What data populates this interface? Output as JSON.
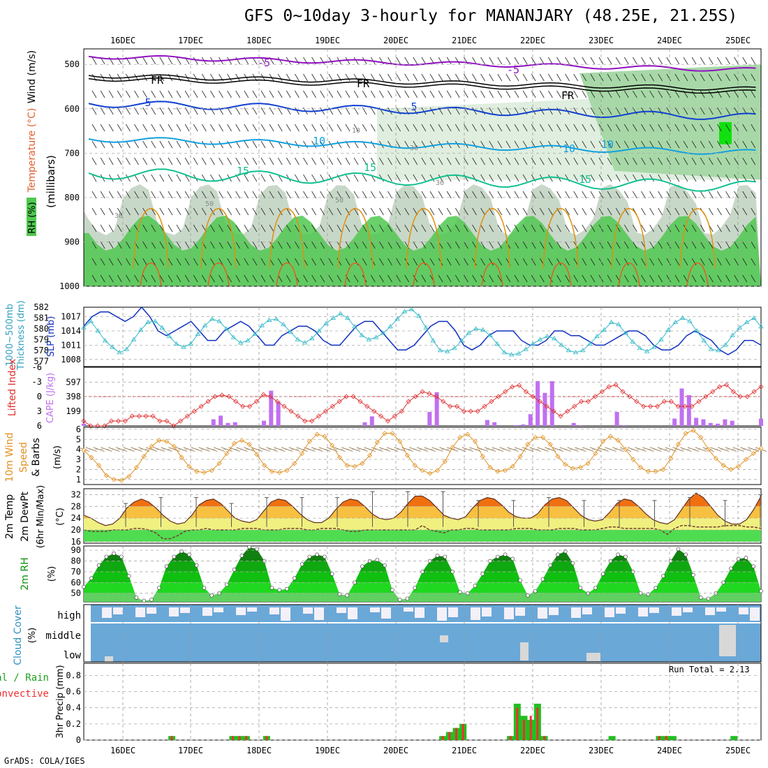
{
  "title": "GFS 0~10day 3-hourly for MANANJARY (48.25E, 21.25S)",
  "credit": "GrADS: COLA/IGES",
  "run_total": "Run Total = 2.13",
  "colors": {
    "rh_green": "#50c850",
    "temp_purple": "#9010c0",
    "temp_blue": "#1040d0",
    "temp_cyan": "#10a0e0",
    "temp_teal": "#10c090",
    "temp_orange": "#e09010",
    "slp_blue": "#1030c0",
    "thick_cyan": "#30b8c8",
    "lifted_red": "#e03030",
    "cape_purple": "#c070f0",
    "wind_orange": "#e09020",
    "cloud_blue": "#6aa8d8",
    "precip_green": "#20c020",
    "precip_red": "#f03030"
  },
  "panel_labels": {
    "upper": [
      "RH (%)",
      "Temperature (°C)",
      "Wind (m/s)",
      "(millibars)"
    ],
    "slp": [
      "1000~500mb",
      "Thickness (dm)",
      "SLP (mb)"
    ],
    "cape": [
      "Lifted Index",
      "CAPE (J/kg)"
    ],
    "wind": [
      "10m Wind",
      "Speed",
      "& Barbs",
      "(m/s)"
    ],
    "temp": [
      "2m Temp",
      "2m DewPt",
      "(6hr Min/Max)",
      "(°C)"
    ],
    "rh": [
      "2m RH",
      "(%)"
    ],
    "cloud": [
      "Cloud Cover",
      "(%)"
    ],
    "precip": [
      "Total / Rain",
      "Convective",
      "3hr Precip (mm)"
    ]
  },
  "chart_data": [
    {
      "id": "upper_air",
      "type": "heatmap",
      "x_ticks": [
        "16DEC",
        "17DEC",
        "18DEC",
        "19DEC",
        "20DEC",
        "21DEC",
        "22DEC",
        "23DEC",
        "24DEC",
        "25DEC"
      ],
      "y_ticks": [
        500,
        600,
        700,
        800,
        900,
        1000
      ],
      "contour_labels": [
        "-5",
        "-5",
        "FR",
        "FR",
        "FR",
        "5",
        "5",
        "10",
        "10",
        "10",
        "15",
        "15",
        "15",
        "30",
        "30",
        "30",
        "50",
        "50",
        "10"
      ]
    },
    {
      "id": "slp_thickness",
      "type": "line",
      "slp_ticks": [
        1008,
        1011,
        1014,
        1017
      ],
      "thickness_ticks": [
        577,
        578,
        579,
        580,
        581,
        582
      ],
      "slp": [
        1015,
        1017,
        1018,
        1018,
        1017,
        1016,
        1017,
        1019,
        1017,
        1014,
        1013,
        1014,
        1015,
        1016,
        1014,
        1012,
        1012,
        1014,
        1015,
        1016,
        1015,
        1013,
        1011,
        1011,
        1013,
        1014,
        1015,
        1015,
        1014,
        1012,
        1011,
        1011,
        1013,
        1015,
        1016,
        1016,
        1014,
        1012,
        1010,
        1010,
        1011,
        1013,
        1015,
        1016,
        1016,
        1014,
        1011,
        1010,
        1011,
        1013,
        1014,
        1014,
        1014,
        1012,
        1011,
        1011,
        1012,
        1014,
        1014,
        1013,
        1013,
        1012,
        1011,
        1011,
        1012,
        1013,
        1014,
        1014,
        1013,
        1011,
        1010,
        1010,
        1011,
        1013,
        1014,
        1013,
        1012,
        1010,
        1009,
        1010,
        1012,
        1012,
        1011
      ],
      "thickness": [
        580.1,
        580.7,
        579.8,
        578.9,
        578.3,
        577.8,
        578.1,
        579.0,
        579.9,
        580.6,
        580.7,
        580.1,
        579.3,
        578.6,
        578.3,
        578.6,
        579.5,
        580.3,
        580.9,
        580.7,
        580.0,
        579.2,
        578.7,
        578.9,
        579.5,
        580.3,
        580.8,
        580.9,
        580.4,
        579.7,
        579.0,
        578.7,
        579.1,
        579.8,
        580.5,
        581.0,
        581.4,
        581.0,
        580.2,
        579.4,
        579.0,
        579.2,
        579.6,
        580.2,
        580.9,
        581.6,
        581.8,
        581.2,
        580.1,
        578.9,
        578.0,
        577.9,
        578.2,
        578.9,
        579.6,
        580.0,
        579.9,
        579.4,
        578.6,
        577.8,
        577.6,
        577.7,
        578.1,
        578.6,
        579.0,
        579.3,
        579.1,
        578.5,
        578.0,
        577.8,
        578.0,
        578.6,
        579.3,
        579.9,
        580.6,
        580.4,
        579.6,
        578.8,
        578.2,
        577.9,
        578.3,
        579.0,
        579.9,
        580.6,
        581.0,
        580.7,
        579.8,
        578.9,
        578.1,
        578.0,
        578.5,
        579.4,
        580.1,
        580.6,
        581.0,
        580.2
      ]
    },
    {
      "id": "cape_lifted",
      "type": "bar",
      "li_ticks": [
        "-6",
        "-3",
        "0",
        "3",
        "6"
      ],
      "cape_ticks": [
        199,
        398,
        597
      ],
      "lifted_index": [
        5,
        6,
        6,
        6,
        5,
        5,
        5,
        4,
        4,
        4,
        4,
        5,
        5,
        6,
        5,
        4,
        3,
        2,
        1,
        0,
        -0.3,
        0,
        1,
        2,
        2,
        1,
        -0.4,
        0,
        1,
        2,
        3,
        4,
        5,
        5,
        4,
        3,
        2,
        1,
        0,
        0,
        1,
        2,
        3,
        4,
        5,
        4,
        3,
        1,
        0,
        -1,
        -0.6,
        0,
        1,
        2,
        2,
        3,
        3,
        3,
        2,
        1,
        0,
        -1,
        -2,
        -2.3,
        -1,
        0,
        1,
        2,
        3,
        4,
        3,
        2,
        1,
        1,
        0,
        -1,
        -2,
        -2.4,
        -1,
        0,
        1,
        2,
        2,
        2,
        1,
        1,
        2,
        2,
        2,
        1,
        0,
        -1,
        -2,
        -2.4,
        -1,
        0,
        0,
        -1,
        -2
      ],
      "cape": [
        30,
        0,
        0,
        0,
        0,
        0,
        0,
        0,
        0,
        0,
        0,
        0,
        0,
        0,
        0,
        0,
        0,
        0,
        90,
        140,
        40,
        50,
        0,
        0,
        0,
        70,
        480,
        330,
        0,
        0,
        0,
        0,
        0,
        0,
        0,
        0,
        0,
        0,
        0,
        50,
        130,
        0,
        0,
        0,
        0,
        0,
        0,
        0,
        190,
        460,
        0,
        0,
        0,
        0,
        0,
        0,
        80,
        50,
        0,
        0,
        10,
        20,
        160,
        610,
        450,
        610,
        0,
        0,
        40,
        10,
        0,
        0,
        0,
        0,
        190,
        10,
        0,
        0,
        0,
        0,
        0,
        0,
        100,
        510,
        420,
        110,
        90,
        40,
        30,
        90,
        70,
        0,
        0,
        0,
        100
      ]
    },
    {
      "id": "wind10m",
      "type": "line",
      "y_ticks": [
        1,
        2,
        3,
        4,
        5,
        6
      ],
      "speed": [
        3.9,
        3.2,
        2.4,
        1.4,
        1.0,
        0.9,
        1.3,
        2.2,
        3.3,
        4.3,
        4.9,
        4.8,
        4.3,
        3.2,
        2.3,
        1.8,
        1.7,
        1.9,
        2.6,
        3.6,
        4.6,
        4.9,
        4.5,
        3.5,
        2.4,
        1.8,
        1.7,
        1.9,
        2.6,
        3.6,
        4.8,
        5.5,
        5.3,
        4.4,
        3.2,
        2.4,
        2.3,
        2.6,
        3.4,
        4.7,
        5.6,
        5.6,
        4.8,
        3.4,
        2.4,
        1.9,
        1.6,
        1.9,
        2.8,
        4.2,
        5.2,
        5.5,
        4.8,
        3.3,
        2.2,
        1.8,
        1.9,
        2.3,
        3.3,
        4.5,
        5.2,
        5.2,
        4.5,
        3.3,
        2.5,
        2.1,
        2.2,
        2.6,
        3.6,
        4.8,
        5.3,
        4.9,
        4.0,
        3.0,
        2.2,
        1.8,
        1.8,
        2.0,
        3.1,
        4.5,
        5.6,
        5.9,
        5.2,
        4.0,
        3.1,
        2.4,
        2.0,
        2.3,
        3.0,
        3.6,
        4.1
      ]
    },
    {
      "id": "temp2m",
      "type": "area",
      "y_ticks": [
        16,
        20,
        24,
        28,
        32
      ],
      "temp": [
        25.0,
        24.0,
        22.5,
        21.5,
        22.0,
        24.0,
        27.5,
        29.5,
        30.5,
        29.5,
        27.5,
        25.0,
        23.0,
        22.0,
        22.5,
        25.0,
        28.5,
        30.0,
        30.5,
        29.0,
        26.5,
        24.0,
        23.0,
        22.5,
        23.5,
        26.5,
        29.5,
        30.5,
        30.0,
        28.0,
        25.5,
        23.5,
        22.5,
        22.5,
        24.0,
        27.0,
        29.5,
        30.5,
        30.0,
        28.0,
        25.5,
        24.0,
        23.5,
        24.0,
        26.0,
        29.0,
        31.5,
        31.5,
        30.0,
        27.5,
        25.0,
        24.0,
        23.5,
        24.5,
        27.5,
        30.0,
        31.0,
        30.5,
        28.5,
        26.0,
        24.5,
        24.0,
        24.0,
        25.5,
        28.5,
        30.5,
        31.0,
        30.0,
        27.5,
        25.0,
        23.5,
        23.0,
        23.5,
        26.0,
        29.0,
        30.5,
        30.0,
        28.0,
        25.5,
        23.5,
        22.5,
        22.0,
        23.5,
        27.0,
        30.5,
        32.5,
        31.0,
        28.0,
        25.0,
        23.0,
        22.0,
        22.0,
        23.5,
        27.0,
        31.5
      ],
      "dewpoint": [
        20.0,
        19.5,
        19.5,
        19.5,
        20.0,
        20.0,
        20.0,
        20.5,
        20.5,
        20.0,
        19.0,
        17.0,
        17.0,
        18.0,
        19.5,
        20.0,
        20.0,
        20.5,
        20.0,
        20.0,
        20.0,
        20.0,
        20.5,
        20.5,
        20.5,
        20.0,
        20.0,
        20.0,
        20.5,
        20.5,
        20.5,
        20.0,
        20.0,
        20.5,
        20.5,
        20.5,
        20.0,
        19.5,
        19.5,
        20.0,
        20.0,
        20.0,
        20.0,
        20.0,
        20.0,
        20.0,
        20.0,
        21.5,
        20.0,
        19.5,
        19.0,
        20.0,
        20.0,
        20.5,
        20.5,
        20.0,
        20.0,
        20.0,
        20.0,
        20.0,
        20.5,
        20.5,
        20.5,
        20.0,
        20.0,
        20.0,
        20.5,
        20.5,
        20.5,
        20.0,
        20.0,
        20.0,
        20.5,
        21.0,
        21.0,
        20.5,
        20.5,
        20.5,
        20.5,
        20.5,
        20.0,
        18.5,
        20.5,
        21.5,
        21.5,
        21.0,
        21.0,
        21.0,
        21.0,
        21.5,
        21.5,
        21.5,
        21.0,
        21.0,
        20.5
      ],
      "max_whisker": [
        29,
        31,
        31,
        29,
        31,
        31,
        31,
        33,
        33,
        33,
        30,
        30,
        31,
        30,
        30,
        30,
        31,
        30,
        32
      ]
    },
    {
      "id": "rh2m",
      "type": "area",
      "y_ticks": [
        50,
        60,
        70,
        80,
        90
      ],
      "rh": [
        56,
        64,
        76,
        84,
        87,
        84,
        66,
        46,
        43,
        44,
        55,
        75,
        84,
        89,
        86,
        76,
        55,
        48,
        50,
        58,
        72,
        85,
        93,
        91,
        80,
        55,
        53,
        54,
        64,
        77,
        84,
        86,
        84,
        68,
        49,
        48,
        60,
        75,
        80,
        81,
        76,
        53,
        44,
        45,
        55,
        70,
        80,
        85,
        84,
        70,
        51,
        50,
        57,
        68,
        80,
        84,
        86,
        82,
        62,
        48,
        52,
        63,
        76,
        86,
        89,
        78,
        55,
        50,
        55,
        68,
        80,
        86,
        84,
        70,
        50,
        49,
        55,
        66,
        80,
        91,
        86,
        67,
        46,
        45,
        50,
        60,
        73,
        82,
        83,
        75,
        52
      ]
    },
    {
      "id": "cloud",
      "type": "table",
      "levels": [
        "high",
        "middle",
        "low"
      ]
    },
    {
      "id": "precip3h",
      "type": "bar",
      "y_ticks": [
        0,
        0.2,
        0.4,
        0.6,
        0.8
      ],
      "total": [
        0,
        0,
        0,
        0,
        0,
        0,
        0,
        0,
        0,
        0,
        0,
        0,
        0,
        0.05,
        0,
        0,
        0,
        0,
        0,
        0,
        0,
        0,
        0.05,
        0.05,
        0.05,
        0,
        0,
        0.05,
        0,
        0,
        0,
        0,
        0,
        0,
        0,
        0,
        0,
        0,
        0,
        0,
        0,
        0,
        0,
        0,
        0,
        0,
        0,
        0,
        0,
        0,
        0,
        0,
        0,
        0.05,
        0.1,
        0.15,
        0.2,
        0,
        0,
        0,
        0,
        0,
        0,
        0.05,
        0.45,
        0.3,
        0.25,
        0.45,
        0.05,
        0,
        0,
        0,
        0,
        0,
        0,
        0,
        0,
        0,
        0.05,
        0,
        0,
        0,
        0,
        0,
        0,
        0.05,
        0.05,
        0.05,
        0,
        0,
        0,
        0,
        0,
        0,
        0,
        0,
        0.05,
        0,
        0,
        0,
        0
      ],
      "rain": [
        0,
        0,
        0,
        0,
        0,
        0,
        0,
        0,
        0,
        0,
        0,
        0,
        0,
        0.05,
        0,
        0,
        0,
        0,
        0,
        0,
        0,
        0,
        0.05,
        0.05,
        0.05,
        0,
        0,
        0.05,
        0,
        0,
        0,
        0,
        0,
        0,
        0,
        0,
        0,
        0,
        0,
        0,
        0,
        0,
        0,
        0,
        0,
        0,
        0,
        0,
        0,
        0,
        0,
        0,
        0,
        0.05,
        0.1,
        0.15,
        0.2,
        0,
        0,
        0,
        0,
        0,
        0,
        0.05,
        0.35,
        0.3,
        0.35,
        0.3,
        0.05,
        0,
        0,
        0,
        0,
        0,
        0,
        0,
        0,
        0,
        0,
        0,
        0,
        0,
        0,
        0,
        0.05,
        0.05,
        0.05,
        0,
        0,
        0,
        0,
        0,
        0,
        0,
        0,
        0,
        0,
        0,
        0,
        0
      ],
      "convective": [
        0,
        0,
        0,
        0,
        0,
        0,
        0,
        0,
        0,
        0,
        0,
        0,
        0,
        0.05,
        0,
        0,
        0,
        0,
        0,
        0,
        0,
        0,
        0.05,
        0.05,
        0.05,
        0,
        0,
        0.05,
        0,
        0,
        0,
        0,
        0,
        0,
        0,
        0,
        0,
        0,
        0,
        0,
        0,
        0,
        0,
        0,
        0,
        0,
        0,
        0,
        0,
        0,
        0,
        0,
        0,
        0.05,
        0.1,
        0.15,
        0.2,
        0,
        0,
        0,
        0,
        0,
        0,
        0.05,
        0.4,
        0.25,
        0.3,
        0.4,
        0.05,
        0,
        0,
        0,
        0,
        0,
        0,
        0,
        0,
        0,
        0,
        0,
        0,
        0,
        0,
        0,
        0.05,
        0.05,
        0.05,
        0,
        0,
        0,
        0,
        0,
        0,
        0,
        0,
        0,
        0,
        0,
        0,
        0
      ]
    }
  ]
}
